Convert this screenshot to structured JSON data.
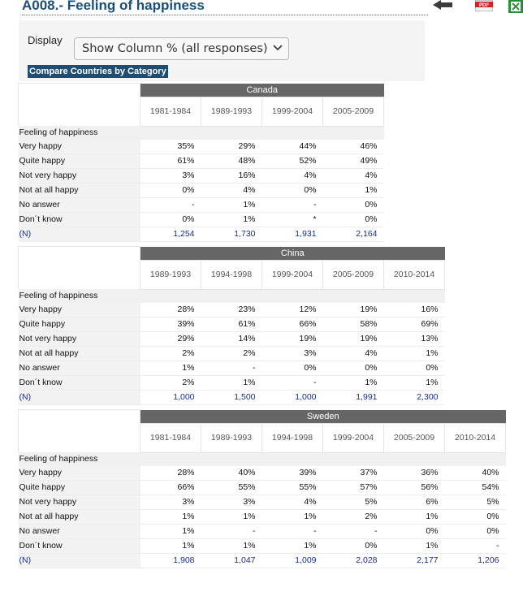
{
  "page": {
    "title": "A008.- Feeling of happiness"
  },
  "icons": {
    "back": "back-arrow-icon",
    "pdf": "pdf-icon",
    "pdf_label": "PDF",
    "excel": "excel-icon"
  },
  "controls": {
    "display_label": "Display",
    "display_value": "Show Column % (all responses)",
    "compare_button": "Compare Countries by Category"
  },
  "tables": [
    {
      "country": "Canada",
      "periods": [
        "1981-1984",
        "1989-1993",
        "1999-2004",
        "2005-2009"
      ],
      "group_label": "Feeling of happiness",
      "rows": [
        {
          "label": "Very happy",
          "values": [
            "35%",
            "29%",
            "44%",
            "46%"
          ]
        },
        {
          "label": "Quite happy",
          "values": [
            "61%",
            "48%",
            "52%",
            "49%"
          ]
        },
        {
          "label": "Not very happy",
          "values": [
            "3%",
            "16%",
            "4%",
            "4%"
          ]
        },
        {
          "label": "Not at all happy",
          "values": [
            "0%",
            "4%",
            "0%",
            "1%"
          ]
        },
        {
          "label": "No answer",
          "values": [
            "-",
            "1%",
            "-",
            "0%"
          ]
        },
        {
          "label": "Don´t know",
          "values": [
            "0%",
            "1%",
            "*",
            "0%"
          ]
        },
        {
          "label": "(N)",
          "values": [
            "1,254",
            "1,730",
            "1,931",
            "2,164"
          ]
        }
      ]
    },
    {
      "country": "China",
      "periods": [
        "1989-1993",
        "1994-1998",
        "1999-2004",
        "2005-2009",
        "2010-2014"
      ],
      "group_label": "Feeling of happiness",
      "rows": [
        {
          "label": "Very happy",
          "values": [
            "28%",
            "23%",
            "12%",
            "19%",
            "16%"
          ]
        },
        {
          "label": "Quite happy",
          "values": [
            "39%",
            "61%",
            "66%",
            "58%",
            "69%"
          ]
        },
        {
          "label": "Not very happy",
          "values": [
            "29%",
            "14%",
            "19%",
            "19%",
            "13%"
          ]
        },
        {
          "label": "Not at all happy",
          "values": [
            "2%",
            "2%",
            "3%",
            "4%",
            "1%"
          ]
        },
        {
          "label": "No answer",
          "values": [
            "1%",
            "-",
            "0%",
            "0%",
            "0%"
          ]
        },
        {
          "label": "Don´t know",
          "values": [
            "2%",
            "1%",
            "-",
            "1%",
            "1%"
          ]
        },
        {
          "label": "(N)",
          "values": [
            "1,000",
            "1,500",
            "1,000",
            "1,991",
            "2,300"
          ]
        }
      ]
    },
    {
      "country": "Sweden",
      "periods": [
        "1981-1984",
        "1989-1993",
        "1994-1998",
        "1999-2004",
        "2005-2009",
        "2010-2014"
      ],
      "group_label": "Feeling of happiness",
      "rows": [
        {
          "label": "Very happy",
          "values": [
            "28%",
            "40%",
            "39%",
            "37%",
            "36%",
            "40%"
          ]
        },
        {
          "label": "Quite happy",
          "values": [
            "66%",
            "55%",
            "55%",
            "57%",
            "56%",
            "54%"
          ]
        },
        {
          "label": "Not very happy",
          "values": [
            "3%",
            "3%",
            "4%",
            "5%",
            "6%",
            "5%"
          ]
        },
        {
          "label": "Not at all happy",
          "values": [
            "1%",
            "1%",
            "1%",
            "2%",
            "1%",
            "0%"
          ]
        },
        {
          "label": "No answer",
          "values": [
            "1%",
            "-",
            "-",
            "-",
            "0%",
            "0%"
          ]
        },
        {
          "label": "Don´t know",
          "values": [
            "1%",
            "1%",
            "1%",
            "0%",
            "1%",
            "-"
          ]
        },
        {
          "label": "(N)",
          "values": [
            "1,908",
            "1,047",
            "1,009",
            "2,028",
            "2,177",
            "1,206"
          ]
        }
      ]
    }
  ]
}
